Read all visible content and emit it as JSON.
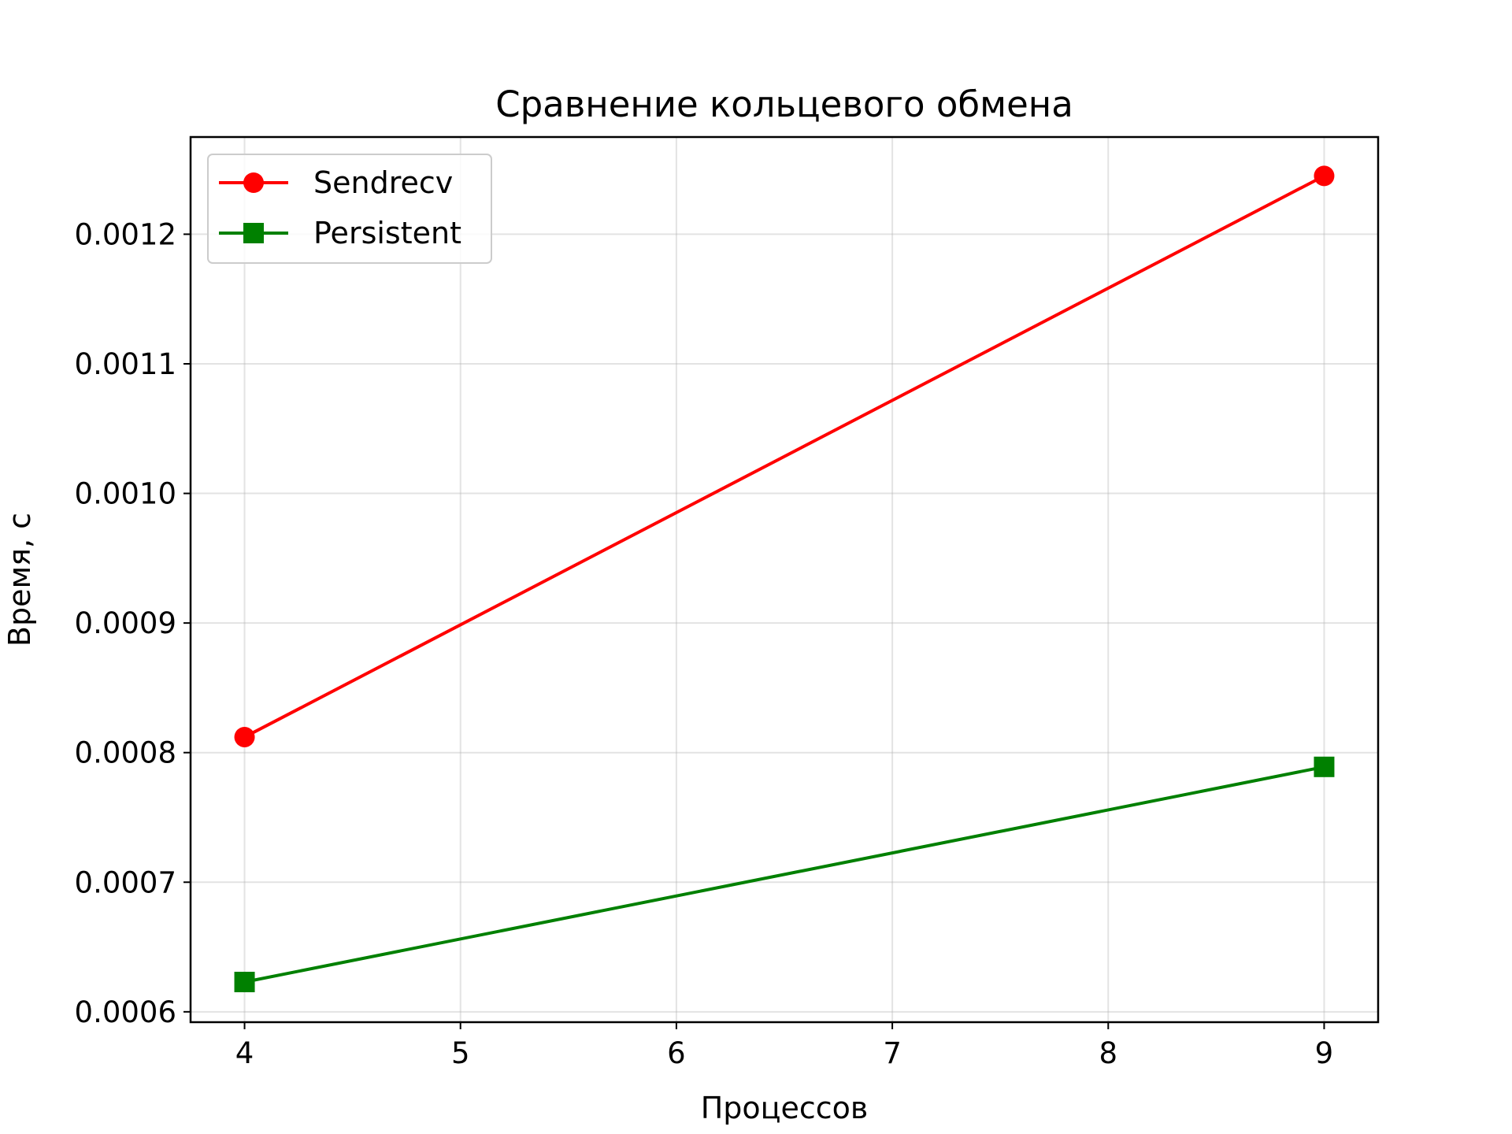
{
  "chart_data": {
    "type": "line",
    "title": "Сравнение кольцевого обмена",
    "xlabel": "Процессов",
    "ylabel": "Время, с",
    "xlim": [
      3.75,
      9.25
    ],
    "ylim": [
      0.000592,
      0.001275
    ],
    "xticks": [
      4,
      5,
      6,
      7,
      8,
      9
    ],
    "xtick_labels": [
      "4",
      "5",
      "6",
      "7",
      "8",
      "9"
    ],
    "yticks": [
      0.0006,
      0.0007,
      0.0008,
      0.0009,
      0.001,
      0.0011,
      0.0012
    ],
    "ytick_labels": [
      "0.0006",
      "0.0007",
      "0.0008",
      "0.0009",
      "0.0010",
      "0.0011",
      "0.0012"
    ],
    "grid": true,
    "legend_position": "top-left",
    "series": [
      {
        "name": "Sendrecv",
        "color": "#ff0000",
        "marker": "circle",
        "x": [
          4,
          9
        ],
        "y": [
          0.000812,
          0.001245
        ]
      },
      {
        "name": "Persistent",
        "color": "#008000",
        "marker": "square",
        "x": [
          4,
          9
        ],
        "y": [
          0.000623,
          0.000789
        ]
      }
    ]
  }
}
